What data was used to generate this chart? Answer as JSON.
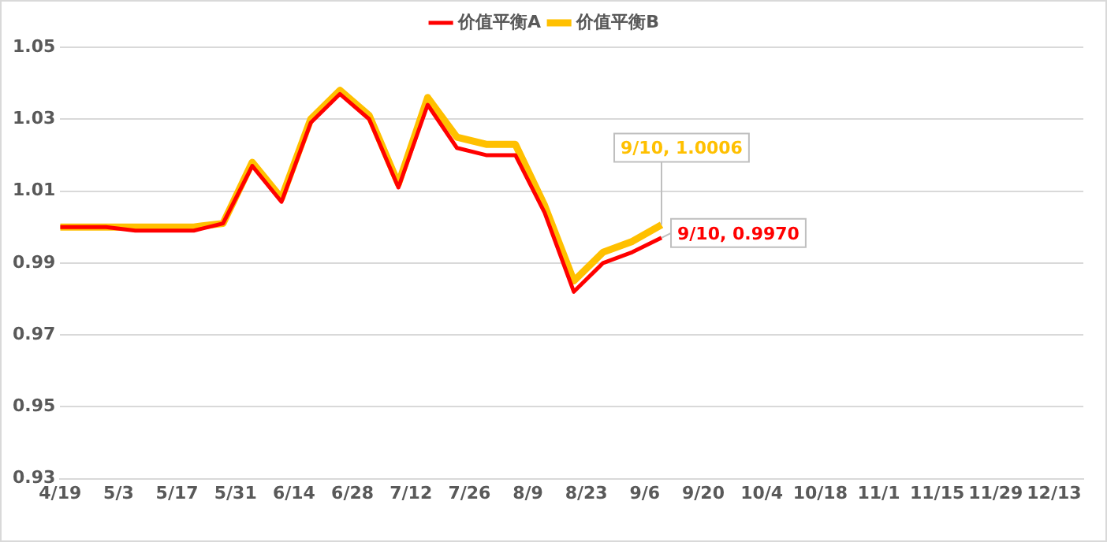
{
  "chart_data": {
    "type": "line",
    "x": [
      "--04-19",
      "--04-23",
      "--04-30",
      "--05-07",
      "--05-14",
      "--05-21",
      "--05-28",
      "--06-04",
      "--06-11",
      "--06-18",
      "--06-25",
      "--07-02",
      "--07-09",
      "--07-16",
      "--07-23",
      "--07-30",
      "--08-06",
      "--08-13",
      "--08-20",
      "--08-27",
      "--09-03",
      "--09-10"
    ],
    "series": [
      {
        "name": "价值平衡A",
        "color": "#ff0000",
        "values": [
          1.0,
          1.0,
          1.0,
          0.999,
          0.999,
          0.999,
          1.001,
          1.017,
          1.007,
          1.029,
          1.037,
          1.03,
          1.011,
          1.034,
          1.022,
          1.02,
          1.02,
          1.004,
          0.982,
          0.99,
          0.993,
          0.997
        ]
      },
      {
        "name": "价值平衡B",
        "color": "#ffc000",
        "values": [
          1.0,
          1.0,
          1.0,
          1.0,
          1.0,
          1.0,
          1.001,
          1.018,
          1.008,
          1.03,
          1.038,
          1.031,
          1.012,
          1.036,
          1.025,
          1.023,
          1.023,
          1.006,
          0.985,
          0.993,
          0.996,
          1.0006
        ]
      }
    ],
    "annotations": [
      {
        "text": "9/10, 0.9970",
        "x": "--09-10",
        "y": 0.997
      },
      {
        "text": "9/10, 1.0006",
        "x": "--09-10",
        "y": 1.0006
      }
    ],
    "xlim": [
      "--04-19",
      "--12-20"
    ],
    "xticks": [
      {
        "value": "--04-19",
        "label": "4/19"
      },
      {
        "value": "--05-03",
        "label": "5/3"
      },
      {
        "value": "--05-17",
        "label": "5/17"
      },
      {
        "value": "--05-31",
        "label": "5/31"
      },
      {
        "value": "--06-14",
        "label": "6/14"
      },
      {
        "value": "--06-28",
        "label": "6/28"
      },
      {
        "value": "--07-12",
        "label": "7/12"
      },
      {
        "value": "--07-26",
        "label": "7/26"
      },
      {
        "value": "--08-09",
        "label": "8/9"
      },
      {
        "value": "--08-23",
        "label": "8/23"
      },
      {
        "value": "--09-06",
        "label": "9/6"
      },
      {
        "value": "--09-20",
        "label": "9/20"
      },
      {
        "value": "--10-04",
        "label": "10/4"
      },
      {
        "value": "--10-18",
        "label": "10/18"
      },
      {
        "value": "--11-01",
        "label": "11/1"
      },
      {
        "value": "--11-15",
        "label": "11/15"
      },
      {
        "value": "--11-29",
        "label": "11/29"
      },
      {
        "value": "--12-13",
        "label": "12/13"
      }
    ],
    "ylim": [
      0.93,
      1.05
    ],
    "yticks": [
      {
        "value": 0.93,
        "label": "0.93"
      },
      {
        "value": 0.95,
        "label": "0.95"
      },
      {
        "value": 0.97,
        "label": "0.97"
      },
      {
        "value": 0.99,
        "label": "0.99"
      },
      {
        "value": 1.01,
        "label": "1.01"
      },
      {
        "value": 1.03,
        "label": "1.03"
      },
      {
        "value": 1.05,
        "label": "1.05"
      }
    ],
    "grid": "y",
    "legend": "top",
    "marker": "none",
    "line_style": "solid"
  }
}
